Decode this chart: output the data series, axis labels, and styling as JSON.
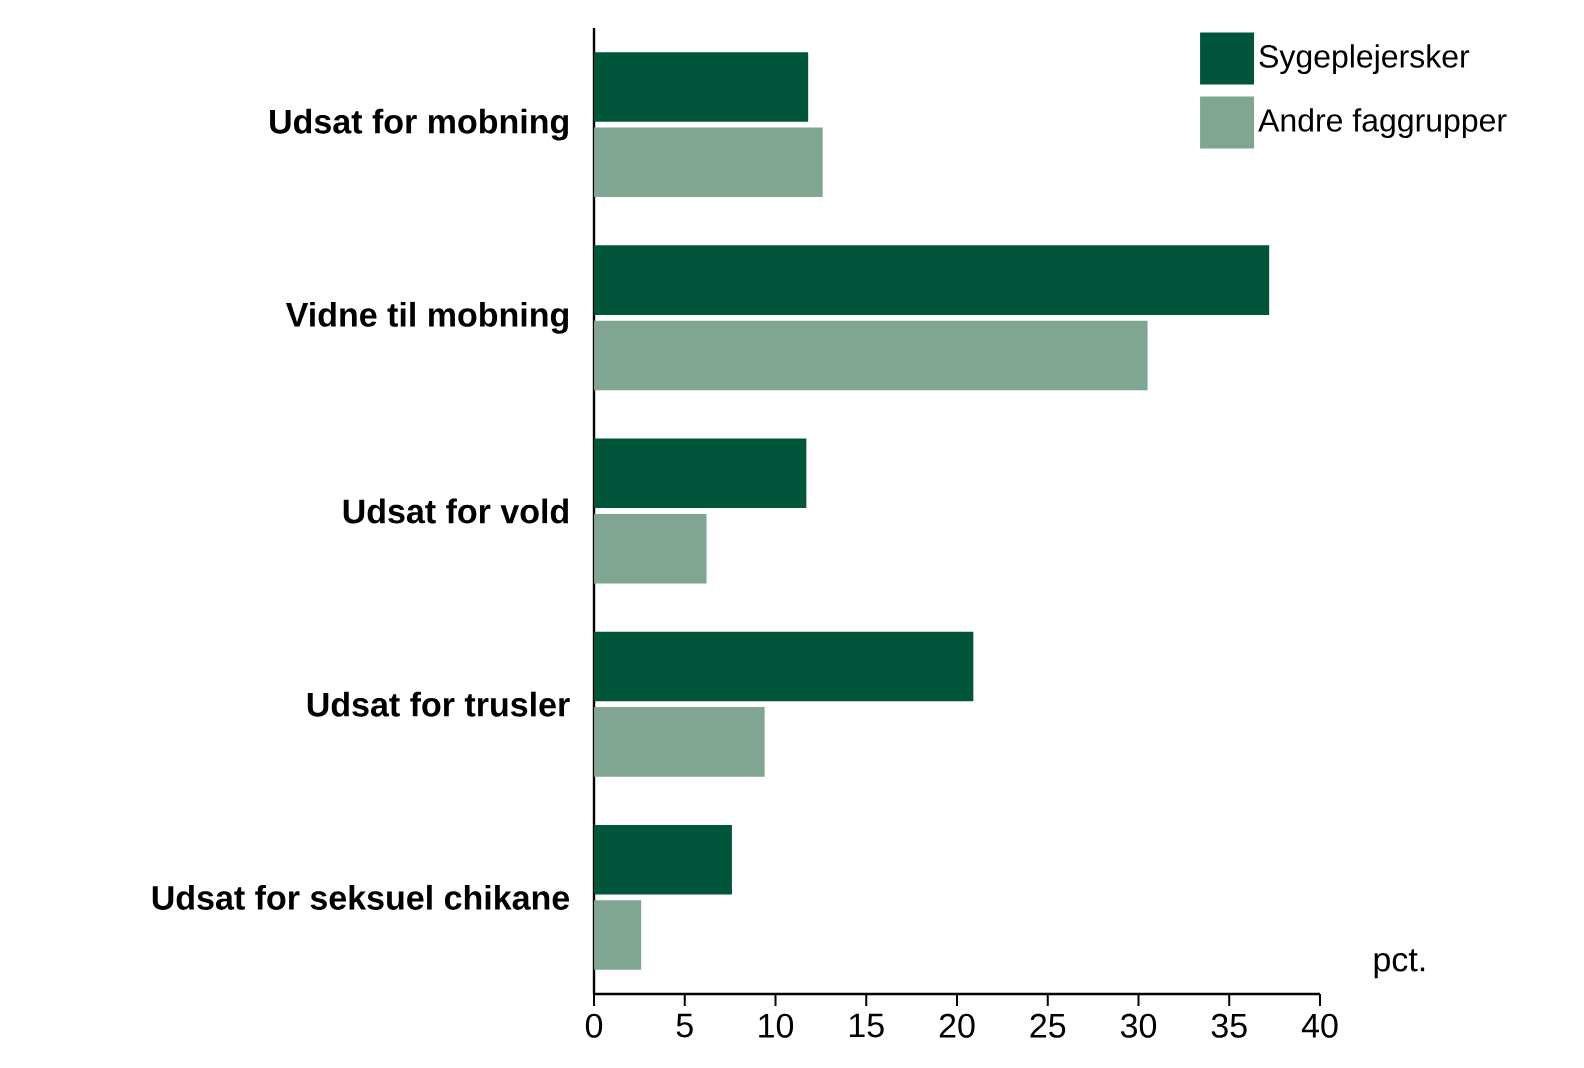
{
  "chart_data": {
    "type": "bar",
    "orientation": "horizontal",
    "xlabel": "pct.",
    "categories": [
      "Udsat for mobning",
      "Vidne til mobning",
      "Udsat for vold",
      "Udsat for trusler",
      "Udsat for seksuel chikane"
    ],
    "series": [
      {
        "name": "Sygeplejersker",
        "color": "#00553a",
        "values": [
          11.8,
          37.2,
          11.7,
          20.9,
          7.6
        ]
      },
      {
        "name": "Andre faggrupper",
        "color": "#80a592",
        "values": [
          12.6,
          30.5,
          6.2,
          9.4,
          2.6
        ]
      }
    ],
    "xlim": [
      0,
      40
    ],
    "xticks": [
      0,
      5,
      10,
      15,
      20,
      25,
      30,
      35,
      40
    ],
    "grid": false,
    "legend": "top right"
  }
}
